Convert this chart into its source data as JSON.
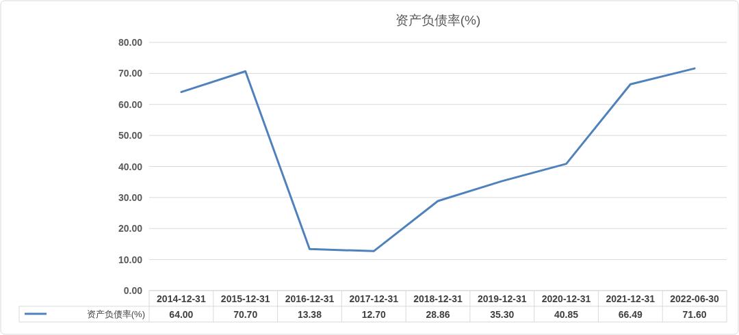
{
  "chart_data": {
    "type": "line",
    "title": "资产负债率(%)",
    "categories": [
      "2014-12-31",
      "2015-12-31",
      "2016-12-31",
      "2017-12-31",
      "2018-12-31",
      "2019-12-31",
      "2020-12-31",
      "2021-12-31",
      "2022-06-30"
    ],
    "series": [
      {
        "name": "资产负债率(%)",
        "color": "#4f81bd",
        "values": [
          64.0,
          70.7,
          13.38,
          12.7,
          28.86,
          35.3,
          40.85,
          66.49,
          71.6
        ],
        "value_labels": [
          "64.00",
          "70.70",
          "13.38",
          "12.70",
          "28.86",
          "35.30",
          "40.85",
          "66.49",
          "71.60"
        ]
      }
    ],
    "ylim": [
      0,
      80
    ],
    "yticks": [
      {
        "value": 0,
        "label": "0.00"
      },
      {
        "value": 10,
        "label": "10.00"
      },
      {
        "value": 20,
        "label": "20.00"
      },
      {
        "value": 30,
        "label": "30.00"
      },
      {
        "value": 40,
        "label": "40.00"
      },
      {
        "value": 50,
        "label": "50.00"
      },
      {
        "value": 60,
        "label": "60.00"
      },
      {
        "value": 70,
        "label": "70.00"
      },
      {
        "value": 80,
        "label": "80.00"
      }
    ],
    "grid": "y",
    "legend": "bottom",
    "marker": "none",
    "line_style": "solid"
  }
}
